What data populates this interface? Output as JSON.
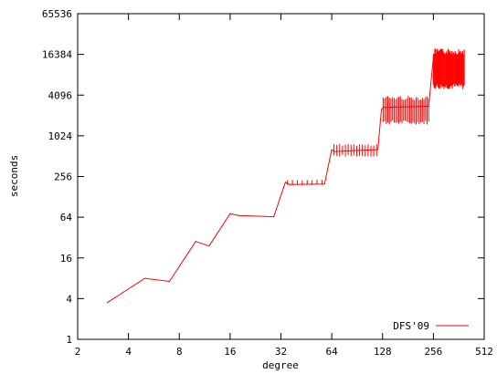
{
  "chart_data": {
    "type": "line",
    "title": "",
    "xlabel": "degree",
    "ylabel": "seconds",
    "x_scale": "log2",
    "y_scale": "log2",
    "xlim": [
      2,
      512
    ],
    "ylim": [
      1,
      65536
    ],
    "xticks": [
      2,
      4,
      8,
      16,
      32,
      64,
      128,
      256,
      512
    ],
    "yticks": [
      1,
      4,
      16,
      64,
      256,
      1024,
      4096,
      16384,
      65536
    ],
    "xtick_labels": [
      "2",
      "4",
      "8",
      "16",
      "32",
      "64",
      "128",
      "256",
      "512"
    ],
    "ytick_labels": [
      "1",
      "4",
      "16",
      "64",
      "256",
      "1024",
      "4096",
      "16384",
      "65536"
    ],
    "grid": false,
    "legend_position": "bottom-right",
    "series_color": "#ff0000",
    "series": [
      {
        "name": "DFS'09",
        "points": [
          [
            3,
            3.5
          ],
          [
            5,
            8
          ],
          [
            7,
            7.2
          ],
          [
            10,
            28
          ],
          [
            12,
            24
          ],
          [
            16,
            72
          ],
          [
            18,
            68
          ],
          [
            29,
            65
          ],
          [
            34,
            210
          ],
          [
            36,
            195
          ],
          [
            58,
            198
          ],
          [
            64,
            640
          ],
          [
            66,
            600
          ],
          [
            120,
            640
          ],
          [
            126,
            2500
          ],
          [
            129,
            2700
          ],
          [
            240,
            2800
          ],
          [
            256,
            15000
          ],
          [
            270,
            15500
          ],
          [
            380,
            16000
          ]
        ],
        "error_bars": [
          {
            "x_range": [
              35,
              56
            ],
            "low": 190,
            "high": 230,
            "count": 8
          },
          {
            "x_range": [
              66,
              118
            ],
            "low": 500,
            "high": 780,
            "count": 16
          },
          {
            "x_range": [
              129,
              240
            ],
            "low": 1500,
            "high": 4000,
            "count": 30
          },
          {
            "x_range": [
              256,
              390
            ],
            "low": 5000,
            "high": 20000,
            "count": 45
          }
        ]
      }
    ]
  }
}
